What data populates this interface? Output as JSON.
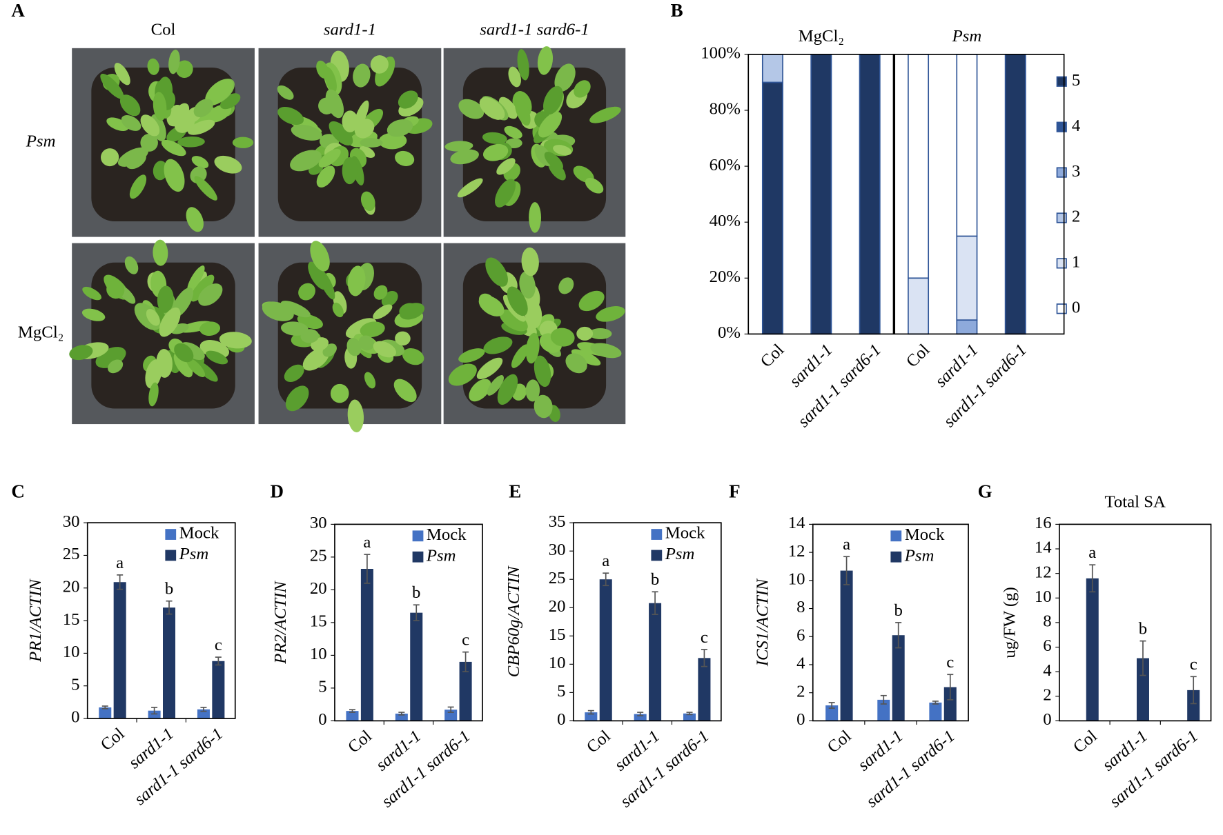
{
  "panel_a": {
    "label": "A",
    "columns": [
      "Col",
      "sard1-1",
      "sard1-1 sard6-1"
    ],
    "rows": [
      "Psm",
      "MgCl₂"
    ]
  },
  "chart_data": [
    {
      "type": "stacked-bar",
      "label": "B",
      "group_labels": [
        "MgCl₂",
        "Psm"
      ],
      "categories": [
        "Col",
        "sard1-1",
        "sard1-1 sard6-1",
        "Col",
        "sard1-1",
        "sard1-1 sard6-1"
      ],
      "ylim": [
        0,
        100
      ],
      "yticks": [
        {
          "value": 0,
          "label": "0%"
        },
        {
          "value": 20,
          "label": "20%"
        },
        {
          "value": 40,
          "label": "40%"
        },
        {
          "value": 60,
          "label": "60%"
        },
        {
          "value": 80,
          "label": "80%"
        },
        {
          "value": 100,
          "label": "100%"
        }
      ],
      "series": [
        {
          "name": "5",
          "color": "#1f3864",
          "values": [
            90,
            100,
            100,
            0,
            0,
            100
          ]
        },
        {
          "name": "4",
          "color": "#2e5597",
          "values": [
            0,
            0,
            0,
            0,
            0,
            0
          ]
        },
        {
          "name": "3",
          "color": "#8eaadb",
          "values": [
            0,
            0,
            0,
            0,
            5,
            0
          ]
        },
        {
          "name": "2",
          "color": "#b4c7e7",
          "values": [
            10,
            0,
            0,
            0,
            0,
            0
          ]
        },
        {
          "name": "1",
          "color": "#dae3f3",
          "values": [
            0,
            0,
            0,
            20,
            30,
            0
          ]
        },
        {
          "name": "0",
          "color": "#ffffff",
          "values": [
            0,
            0,
            0,
            80,
            65,
            0
          ]
        }
      ]
    },
    {
      "type": "bar",
      "label": "C",
      "ylabel": "PR1/ACTIN",
      "categories": [
        "Col",
        "sard1-1",
        "sard1-1 sard6-1"
      ],
      "ylim": [
        0,
        30
      ],
      "yticks": [
        0,
        5,
        10,
        15,
        20,
        25,
        30
      ],
      "series": [
        {
          "name": "Mock",
          "color": "#4472c4",
          "values": [
            1.7,
            1.2,
            1.4
          ],
          "errors": [
            0.2,
            0.5,
            0.3
          ]
        },
        {
          "name": "Psm",
          "color": "#203864",
          "values": [
            20.9,
            17,
            8.8
          ],
          "errors": [
            1.1,
            1,
            0.6
          ],
          "letters": [
            "a",
            "b",
            "c"
          ]
        }
      ]
    },
    {
      "type": "bar",
      "label": "D",
      "ylabel": "PR2/ACTIN",
      "categories": [
        "Col",
        "sard1-1",
        "sard1-1 sard6-1"
      ],
      "ylim": [
        0,
        30
      ],
      "yticks": [
        0,
        5,
        10,
        15,
        20,
        25,
        30
      ],
      "series": [
        {
          "name": "Mock",
          "color": "#4472c4",
          "values": [
            1.5,
            1.1,
            1.7
          ],
          "errors": [
            0.2,
            0.2,
            0.4
          ]
        },
        {
          "name": "Psm",
          "color": "#203864",
          "values": [
            23.2,
            16.5,
            9
          ],
          "errors": [
            2.2,
            1.2,
            1.5
          ],
          "letters": [
            "a",
            "b",
            "c"
          ]
        }
      ]
    },
    {
      "type": "bar",
      "label": "E",
      "ylabel": "CBP60g/ACTIN",
      "categories": [
        "Col",
        "sard1-1",
        "sard1-1 sard6-1"
      ],
      "ylim": [
        0,
        35
      ],
      "yticks": [
        0,
        5,
        10,
        15,
        20,
        25,
        30,
        35
      ],
      "series": [
        {
          "name": "Mock",
          "color": "#4472c4",
          "values": [
            1.5,
            1.2,
            1.3
          ],
          "errors": [
            0.3,
            0.3,
            0.2
          ]
        },
        {
          "name": "Psm",
          "color": "#203864",
          "values": [
            25,
            20.8,
            11.1
          ],
          "errors": [
            1.1,
            2,
            1.5
          ],
          "letters": [
            "a",
            "b",
            "c"
          ]
        }
      ]
    },
    {
      "type": "bar",
      "label": "F",
      "ylabel": "ICS1/ACTIN",
      "categories": [
        "Col",
        "sard1-1",
        "sard1-1 sard6-1"
      ],
      "ylim": [
        0,
        14
      ],
      "yticks": [
        0,
        2,
        4,
        6,
        8,
        10,
        12,
        14
      ],
      "series": [
        {
          "name": "Mock",
          "color": "#4472c4",
          "values": [
            1.1,
            1.5,
            1.3
          ],
          "errors": [
            0.2,
            0.3,
            0.1
          ]
        },
        {
          "name": "Psm",
          "color": "#203864",
          "values": [
            10.7,
            6.1,
            2.4
          ],
          "errors": [
            1,
            0.9,
            0.9
          ],
          "letters": [
            "a",
            "b",
            "c"
          ]
        }
      ]
    },
    {
      "type": "bar",
      "label": "G",
      "title": "Total SA",
      "ylabel": "ug/FW (g)",
      "categories": [
        "Col",
        "sard1-1",
        "sard1-1 sard6-1"
      ],
      "ylim": [
        0,
        16
      ],
      "yticks": [
        0,
        2,
        4,
        6,
        8,
        10,
        12,
        14,
        16
      ],
      "series": [
        {
          "color": "#203864",
          "values": [
            11.6,
            5.1,
            2.5
          ],
          "errors": [
            1.1,
            1.4,
            1.1
          ],
          "letters": [
            "a",
            "b",
            "c"
          ]
        }
      ]
    }
  ]
}
